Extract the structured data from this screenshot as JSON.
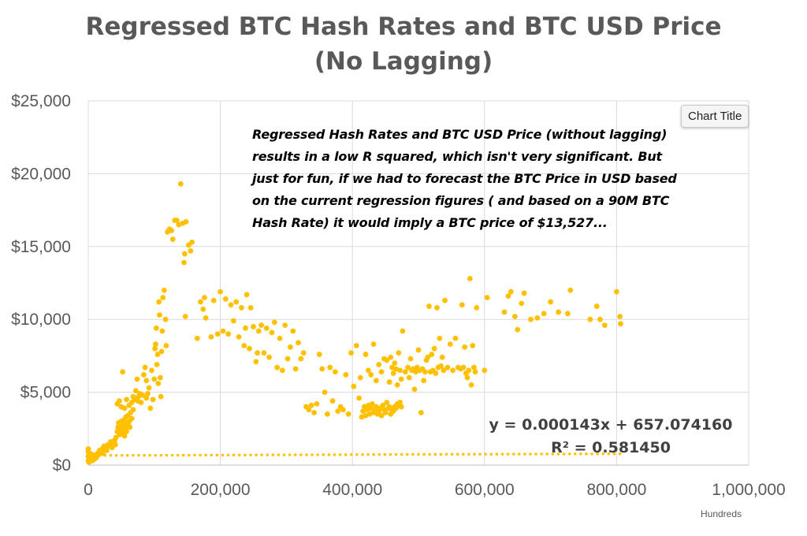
{
  "chart_data": {
    "type": "scatter",
    "title": "Regressed BTC Hash Rates and BTC USD Price",
    "subtitle": "(No Lagging)",
    "xlabel": "",
    "ylabel": "",
    "x_units_label": "Hundreds",
    "xlim": [
      0,
      1000000
    ],
    "ylim": [
      0,
      25000
    ],
    "x_ticks": [
      0,
      200000,
      400000,
      600000,
      800000,
      1000000
    ],
    "x_tick_labels": [
      "0",
      "200,000",
      "400,000",
      "600,000",
      "800,000",
      "1,000,000"
    ],
    "y_ticks": [
      0,
      5000,
      10000,
      15000,
      20000,
      25000
    ],
    "y_tick_labels": [
      "$0",
      "$5,000",
      "$10,000",
      "$15,000",
      "$20,000",
      "$25,000"
    ],
    "grid": true,
    "marker_color": "#FFC000",
    "trendline": {
      "style": "dotted",
      "slope": 0.000143,
      "intercept": 657.07416,
      "x_range": [
        0,
        810000
      ],
      "equation_text": "y = 0.000143x + 657.074160",
      "r2_text": "R² = 0.581450"
    },
    "annotation_lines": [
      "Regressed Hash Rates and BTC USD Price (without lagging)",
      "results in a low R squared, which isn't very significant.  But",
      "just for fun, if we had to forecast the BTC Price in USD based",
      "on the current regression figures ( and based on a 90M BTC",
      "Hash Rate) it would imply a BTC price of $13,527..."
    ],
    "points": [
      [
        0,
        300
      ],
      [
        0,
        600
      ],
      [
        0,
        900
      ],
      [
        0,
        1100
      ],
      [
        1000,
        200
      ],
      [
        2000,
        500
      ],
      [
        3000,
        800
      ],
      [
        4000,
        400
      ],
      [
        5000,
        600
      ],
      [
        6000,
        300
      ],
      [
        7000,
        700
      ],
      [
        8000,
        500
      ],
      [
        9000,
        400
      ],
      [
        10000,
        600
      ],
      [
        12000,
        500
      ],
      [
        14000,
        800
      ],
      [
        15000,
        700
      ],
      [
        17000,
        1000
      ],
      [
        19000,
        900
      ],
      [
        21000,
        1100
      ],
      [
        22000,
        800
      ],
      [
        24000,
        1300
      ],
      [
        26000,
        1200
      ],
      [
        28000,
        1000
      ],
      [
        30000,
        1400
      ],
      [
        32000,
        1300
      ],
      [
        34000,
        1600
      ],
      [
        36000,
        1200
      ],
      [
        38000,
        1500
      ],
      [
        40000,
        1700
      ],
      [
        41000,
        1400
      ],
      [
        42000,
        1900
      ],
      [
        44000,
        2300
      ],
      [
        45000,
        2600
      ],
      [
        46000,
        2900
      ],
      [
        47000,
        2400
      ],
      [
        48000,
        2100
      ],
      [
        50000,
        2700
      ],
      [
        50000,
        3000
      ],
      [
        51000,
        2200
      ],
      [
        52000,
        2800
      ],
      [
        53000,
        2500
      ],
      [
        54000,
        3100
      ],
      [
        55000,
        2000
      ],
      [
        56000,
        2600
      ],
      [
        57000,
        3300
      ],
      [
        58000,
        2300
      ],
      [
        59000,
        2900
      ],
      [
        60000,
        3400
      ],
      [
        61000,
        2700
      ],
      [
        62000,
        3000
      ],
      [
        63000,
        2600
      ],
      [
        64000,
        3600
      ],
      [
        66000,
        3200
      ],
      [
        68000,
        3800
      ],
      [
        44000,
        4200
      ],
      [
        47000,
        4400
      ],
      [
        50000,
        4000
      ],
      [
        52000,
        6400
      ],
      [
        55000,
        3900
      ],
      [
        58000,
        4500
      ],
      [
        62000,
        4100
      ],
      [
        66000,
        4300
      ],
      [
        68000,
        4700
      ],
      [
        70000,
        4500
      ],
      [
        72000,
        5100
      ],
      [
        74000,
        5900
      ],
      [
        75000,
        4400
      ],
      [
        76000,
        4700
      ],
      [
        78000,
        4900
      ],
      [
        80000,
        4300
      ],
      [
        82000,
        4800
      ],
      [
        84000,
        6200
      ],
      [
        86000,
        6700
      ],
      [
        88000,
        5800
      ],
      [
        88000,
        4600
      ],
      [
        90000,
        4900
      ],
      [
        92000,
        5300
      ],
      [
        94000,
        3900
      ],
      [
        96000,
        6500
      ],
      [
        98000,
        4500
      ],
      [
        100000,
        5900
      ],
      [
        101000,
        8000
      ],
      [
        102000,
        8300
      ],
      [
        103000,
        9400
      ],
      [
        104000,
        6900
      ],
      [
        105000,
        7600
      ],
      [
        106000,
        5600
      ],
      [
        107000,
        11200
      ],
      [
        108000,
        10300
      ],
      [
        109000,
        6000
      ],
      [
        110000,
        4700
      ],
      [
        111000,
        7800
      ],
      [
        112000,
        9200
      ],
      [
        113000,
        11500
      ],
      [
        115000,
        12000
      ],
      [
        117000,
        10000
      ],
      [
        118000,
        8200
      ],
      [
        120000,
        16000
      ],
      [
        123000,
        16200
      ],
      [
        126000,
        16100
      ],
      [
        128000,
        15500
      ],
      [
        131000,
        16800
      ],
      [
        134000,
        16800
      ],
      [
        137000,
        16500
      ],
      [
        140000,
        19300
      ],
      [
        143000,
        16600
      ],
      [
        145000,
        13900
      ],
      [
        146000,
        14500
      ],
      [
        147000,
        10200
      ],
      [
        148000,
        16700
      ],
      [
        152000,
        15100
      ],
      [
        155000,
        14700
      ],
      [
        157000,
        15300
      ],
      [
        165000,
        8700
      ],
      [
        170000,
        11200
      ],
      [
        174000,
        10700
      ],
      [
        176000,
        11500
      ],
      [
        178000,
        10100
      ],
      [
        186000,
        8800
      ],
      [
        190000,
        11300
      ],
      [
        196000,
        9000
      ],
      [
        200000,
        11900
      ],
      [
        204000,
        9200
      ],
      [
        208000,
        11400
      ],
      [
        212000,
        9000
      ],
      [
        216000,
        11000
      ],
      [
        220000,
        9900
      ],
      [
        224000,
        11200
      ],
      [
        228000,
        8800
      ],
      [
        232000,
        10800
      ],
      [
        236000,
        8200
      ],
      [
        238000,
        9400
      ],
      [
        240000,
        11700
      ],
      [
        244000,
        8000
      ],
      [
        246000,
        10800
      ],
      [
        250000,
        9500
      ],
      [
        254000,
        7100
      ],
      [
        256000,
        7700
      ],
      [
        258000,
        9200
      ],
      [
        262000,
        9600
      ],
      [
        266000,
        7700
      ],
      [
        270000,
        9400
      ],
      [
        274000,
        7400
      ],
      [
        278000,
        9100
      ],
      [
        282000,
        9800
      ],
      [
        286000,
        6700
      ],
      [
        290000,
        8700
      ],
      [
        294000,
        6500
      ],
      [
        298000,
        9600
      ],
      [
        302000,
        7300
      ],
      [
        306000,
        8100
      ],
      [
        310000,
        9200
      ],
      [
        314000,
        6600
      ],
      [
        318000,
        8400
      ],
      [
        322000,
        7300
      ],
      [
        326000,
        7700
      ],
      [
        330000,
        4000
      ],
      [
        334000,
        3800
      ],
      [
        338000,
        4100
      ],
      [
        342000,
        3600
      ],
      [
        346000,
        4200
      ],
      [
        350000,
        7600
      ],
      [
        354000,
        6600
      ],
      [
        358000,
        5000
      ],
      [
        362000,
        3500
      ],
      [
        366000,
        6700
      ],
      [
        370000,
        4400
      ],
      [
        374000,
        6400
      ],
      [
        378000,
        3700
      ],
      [
        382000,
        4000
      ],
      [
        386000,
        3800
      ],
      [
        390000,
        6200
      ],
      [
        394000,
        3500
      ],
      [
        398000,
        7700
      ],
      [
        402000,
        5400
      ],
      [
        406000,
        8200
      ],
      [
        410000,
        4600
      ],
      [
        412000,
        6000
      ],
      [
        414000,
        3300
      ],
      [
        416000,
        3700
      ],
      [
        418000,
        4000
      ],
      [
        420000,
        3400
      ],
      [
        422000,
        3800
      ],
      [
        424000,
        4100
      ],
      [
        426000,
        3500
      ],
      [
        428000,
        3900
      ],
      [
        430000,
        4200
      ],
      [
        432000,
        3600
      ],
      [
        434000,
        3800
      ],
      [
        436000,
        4000
      ],
      [
        438000,
        3500
      ],
      [
        440000,
        3700
      ],
      [
        442000,
        3900
      ],
      [
        444000,
        3400
      ],
      [
        446000,
        4100
      ],
      [
        448000,
        3800
      ],
      [
        450000,
        3600
      ],
      [
        452000,
        4300
      ],
      [
        454000,
        3900
      ],
      [
        456000,
        4000
      ],
      [
        458000,
        3500
      ],
      [
        460000,
        3800
      ],
      [
        462000,
        3700
      ],
      [
        464000,
        4000
      ],
      [
        466000,
        3900
      ],
      [
        468000,
        4200
      ],
      [
        470000,
        4100
      ],
      [
        472000,
        4300
      ],
      [
        474000,
        4000
      ],
      [
        420000,
        7600
      ],
      [
        424000,
        6500
      ],
      [
        428000,
        6200
      ],
      [
        432000,
        8300
      ],
      [
        436000,
        5800
      ],
      [
        440000,
        6900
      ],
      [
        444000,
        6400
      ],
      [
        448000,
        7300
      ],
      [
        452000,
        7200
      ],
      [
        456000,
        5700
      ],
      [
        458000,
        7400
      ],
      [
        460000,
        6700
      ],
      [
        462000,
        6300
      ],
      [
        464000,
        7000
      ],
      [
        466000,
        6600
      ],
      [
        468000,
        5500
      ],
      [
        470000,
        7700
      ],
      [
        472000,
        6500
      ],
      [
        474000,
        5900
      ],
      [
        476000,
        9200
      ],
      [
        480000,
        6400
      ],
      [
        484000,
        6700
      ],
      [
        486000,
        6000
      ],
      [
        488000,
        7300
      ],
      [
        490000,
        6500
      ],
      [
        492000,
        6600
      ],
      [
        494000,
        5200
      ],
      [
        496000,
        6400
      ],
      [
        498000,
        6700
      ],
      [
        500000,
        7900
      ],
      [
        502000,
        6500
      ],
      [
        504000,
        3600
      ],
      [
        506000,
        6600
      ],
      [
        508000,
        5800
      ],
      [
        510000,
        6400
      ],
      [
        512000,
        7200
      ],
      [
        514000,
        7400
      ],
      [
        516000,
        10900
      ],
      [
        518000,
        6400
      ],
      [
        520000,
        7600
      ],
      [
        522000,
        6500
      ],
      [
        524000,
        8000
      ],
      [
        526000,
        6300
      ],
      [
        528000,
        10800
      ],
      [
        530000,
        6700
      ],
      [
        532000,
        8700
      ],
      [
        534000,
        6800
      ],
      [
        536000,
        7400
      ],
      [
        538000,
        6500
      ],
      [
        540000,
        11300
      ],
      [
        544000,
        6700
      ],
      [
        548000,
        8300
      ],
      [
        552000,
        6500
      ],
      [
        556000,
        8700
      ],
      [
        560000,
        6700
      ],
      [
        564000,
        6600
      ],
      [
        566000,
        11000
      ],
      [
        568000,
        6700
      ],
      [
        570000,
        8100
      ],
      [
        572000,
        6300
      ],
      [
        574000,
        6000
      ],
      [
        576000,
        6500
      ],
      [
        578000,
        12800
      ],
      [
        580000,
        5500
      ],
      [
        582000,
        8200
      ],
      [
        584000,
        6700
      ],
      [
        586000,
        6400
      ],
      [
        588000,
        10800
      ],
      [
        600000,
        6500
      ],
      [
        604000,
        11500
      ],
      [
        630000,
        10500
      ],
      [
        636000,
        11600
      ],
      [
        640000,
        11900
      ],
      [
        646000,
        10200
      ],
      [
        650000,
        9300
      ],
      [
        656000,
        11100
      ],
      [
        660000,
        11800
      ],
      [
        670000,
        10000
      ],
      [
        680000,
        10100
      ],
      [
        690000,
        10400
      ],
      [
        700000,
        11200
      ],
      [
        712000,
        10500
      ],
      [
        726000,
        10400
      ],
      [
        730000,
        12000
      ],
      [
        760000,
        10000
      ],
      [
        770000,
        10900
      ],
      [
        775000,
        10000
      ],
      [
        782000,
        9600
      ],
      [
        800000,
        11900
      ],
      [
        805000,
        10200
      ],
      [
        806000,
        9700
      ]
    ]
  },
  "ui": {
    "tooltip_label": "Chart Title"
  }
}
